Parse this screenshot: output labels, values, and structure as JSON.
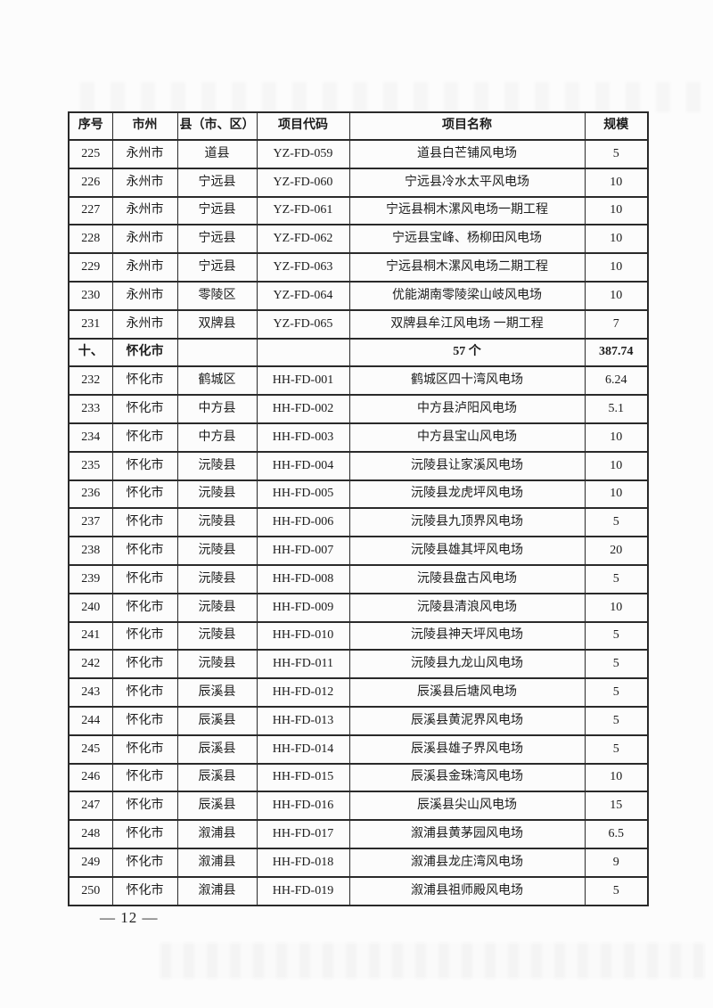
{
  "page": {
    "footer": "— 12 —"
  },
  "colors": {
    "paper": "#fcfcfc",
    "ink": "#1c1c1c",
    "table_border": "#2a2a2a"
  },
  "table": {
    "columns": [
      {
        "key": "no",
        "label": "序号"
      },
      {
        "key": "city",
        "label": "市州"
      },
      {
        "key": "county",
        "label": "县（市、区）"
      },
      {
        "key": "code",
        "label": "项目代码"
      },
      {
        "key": "name",
        "label": "项目名称"
      },
      {
        "key": "scale",
        "label": "规模"
      }
    ],
    "rows": [
      {
        "no": "225",
        "city": "永州市",
        "county": "道县",
        "code": "YZ-FD-059",
        "name": "道县白芒铺风电场",
        "scale": "5",
        "summary": false
      },
      {
        "no": "226",
        "city": "永州市",
        "county": "宁远县",
        "code": "YZ-FD-060",
        "name": "宁远县冷水太平风电场",
        "scale": "10",
        "summary": false
      },
      {
        "no": "227",
        "city": "永州市",
        "county": "宁远县",
        "code": "YZ-FD-061",
        "name": "宁远县桐木漯风电场一期工程",
        "scale": "10",
        "summary": false
      },
      {
        "no": "228",
        "city": "永州市",
        "county": "宁远县",
        "code": "YZ-FD-062",
        "name": "宁远县宝峰、杨柳田风电场",
        "scale": "10",
        "summary": false
      },
      {
        "no": "229",
        "city": "永州市",
        "county": "宁远县",
        "code": "YZ-FD-063",
        "name": "宁远县桐木漯风电场二期工程",
        "scale": "10",
        "summary": false
      },
      {
        "no": "230",
        "city": "永州市",
        "county": "零陵区",
        "code": "YZ-FD-064",
        "name": "优能湖南零陵梁山岐风电场",
        "scale": "10",
        "summary": false
      },
      {
        "no": "231",
        "city": "永州市",
        "county": "双牌县",
        "code": "YZ-FD-065",
        "name": "双牌县牟江风电场 一期工程",
        "scale": "7",
        "summary": false
      },
      {
        "no": "十、",
        "city": "怀化市",
        "county": "",
        "code": "",
        "name": "57 个",
        "scale": "387.74",
        "summary": true
      },
      {
        "no": "232",
        "city": "怀化市",
        "county": "鹤城区",
        "code": "HH-FD-001",
        "name": "鹤城区四十湾风电场",
        "scale": "6.24",
        "summary": false
      },
      {
        "no": "233",
        "city": "怀化市",
        "county": "中方县",
        "code": "HH-FD-002",
        "name": "中方县泸阳风电场",
        "scale": "5.1",
        "summary": false
      },
      {
        "no": "234",
        "city": "怀化市",
        "county": "中方县",
        "code": "HH-FD-003",
        "name": "中方县宝山风电场",
        "scale": "10",
        "summary": false
      },
      {
        "no": "235",
        "city": "怀化市",
        "county": "沅陵县",
        "code": "HH-FD-004",
        "name": "沅陵县让家溪风电场",
        "scale": "10",
        "summary": false
      },
      {
        "no": "236",
        "city": "怀化市",
        "county": "沅陵县",
        "code": "HH-FD-005",
        "name": "沅陵县龙虎坪风电场",
        "scale": "10",
        "summary": false
      },
      {
        "no": "237",
        "city": "怀化市",
        "county": "沅陵县",
        "code": "HH-FD-006",
        "name": "沅陵县九顶界风电场",
        "scale": "5",
        "summary": false
      },
      {
        "no": "238",
        "city": "怀化市",
        "county": "沅陵县",
        "code": "HH-FD-007",
        "name": "沅陵县雄其坪风电场",
        "scale": "20",
        "summary": false
      },
      {
        "no": "239",
        "city": "怀化市",
        "county": "沅陵县",
        "code": "HH-FD-008",
        "name": "沅陵县盘古风电场",
        "scale": "5",
        "summary": false
      },
      {
        "no": "240",
        "city": "怀化市",
        "county": "沅陵县",
        "code": "HH-FD-009",
        "name": "沅陵县清浪风电场",
        "scale": "10",
        "summary": false
      },
      {
        "no": "241",
        "city": "怀化市",
        "county": "沅陵县",
        "code": "HH-FD-010",
        "name": "沅陵县神天坪风电场",
        "scale": "5",
        "summary": false
      },
      {
        "no": "242",
        "city": "怀化市",
        "county": "沅陵县",
        "code": "HH-FD-011",
        "name": "沅陵县九龙山风电场",
        "scale": "5",
        "summary": false
      },
      {
        "no": "243",
        "city": "怀化市",
        "county": "辰溪县",
        "code": "HH-FD-012",
        "name": "辰溪县后塘风电场",
        "scale": "5",
        "summary": false
      },
      {
        "no": "244",
        "city": "怀化市",
        "county": "辰溪县",
        "code": "HH-FD-013",
        "name": "辰溪县黄泥界风电场",
        "scale": "5",
        "summary": false
      },
      {
        "no": "245",
        "city": "怀化市",
        "county": "辰溪县",
        "code": "HH-FD-014",
        "name": "辰溪县雄子界风电场",
        "scale": "5",
        "summary": false
      },
      {
        "no": "246",
        "city": "怀化市",
        "county": "辰溪县",
        "code": "HH-FD-015",
        "name": "辰溪县金珠湾风电场",
        "scale": "10",
        "summary": false
      },
      {
        "no": "247",
        "city": "怀化市",
        "county": "辰溪县",
        "code": "HH-FD-016",
        "name": "辰溪县尖山风电场",
        "scale": "15",
        "summary": false
      },
      {
        "no": "248",
        "city": "怀化市",
        "county": "溆浦县",
        "code": "HH-FD-017",
        "name": "溆浦县黄茅园风电场",
        "scale": "6.5",
        "summary": false
      },
      {
        "no": "249",
        "city": "怀化市",
        "county": "溆浦县",
        "code": "HH-FD-018",
        "name": "溆浦县龙庄湾风电场",
        "scale": "9",
        "summary": false
      },
      {
        "no": "250",
        "city": "怀化市",
        "county": "溆浦县",
        "code": "HH-FD-019",
        "name": "溆浦县祖师殿风电场",
        "scale": "5",
        "summary": false
      }
    ]
  }
}
